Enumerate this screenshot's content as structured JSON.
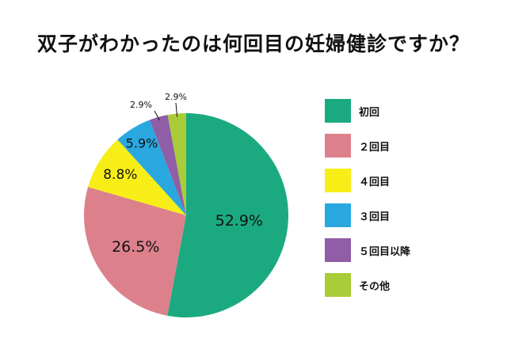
{
  "chart_data": {
    "type": "pie",
    "title": "双子がわかったのは何回目の妊婦健診ですか？",
    "slices": [
      {
        "label": "初回",
        "value": 52.9,
        "value_label": "52.9%",
        "color": "#1baa80"
      },
      {
        "label": "２回目",
        "value": 26.5,
        "value_label": "26.5%",
        "color": "#dc818c"
      },
      {
        "label": "４回目",
        "value": 8.8,
        "value_label": "8.8%",
        "color": "#f7ee17"
      },
      {
        "label": "３回目",
        "value": 5.9,
        "value_label": "5.9%",
        "color": "#29a8e0"
      },
      {
        "label": "５回目以降",
        "value": 2.9,
        "value_label": "2.9%",
        "color": "#8f5ea7"
      },
      {
        "label": "その他",
        "value": 2.9,
        "value_label": "2.9%",
        "color": "#a8cd38"
      }
    ],
    "legend_position": "right",
    "start": "top",
    "direction": "clockwise"
  }
}
